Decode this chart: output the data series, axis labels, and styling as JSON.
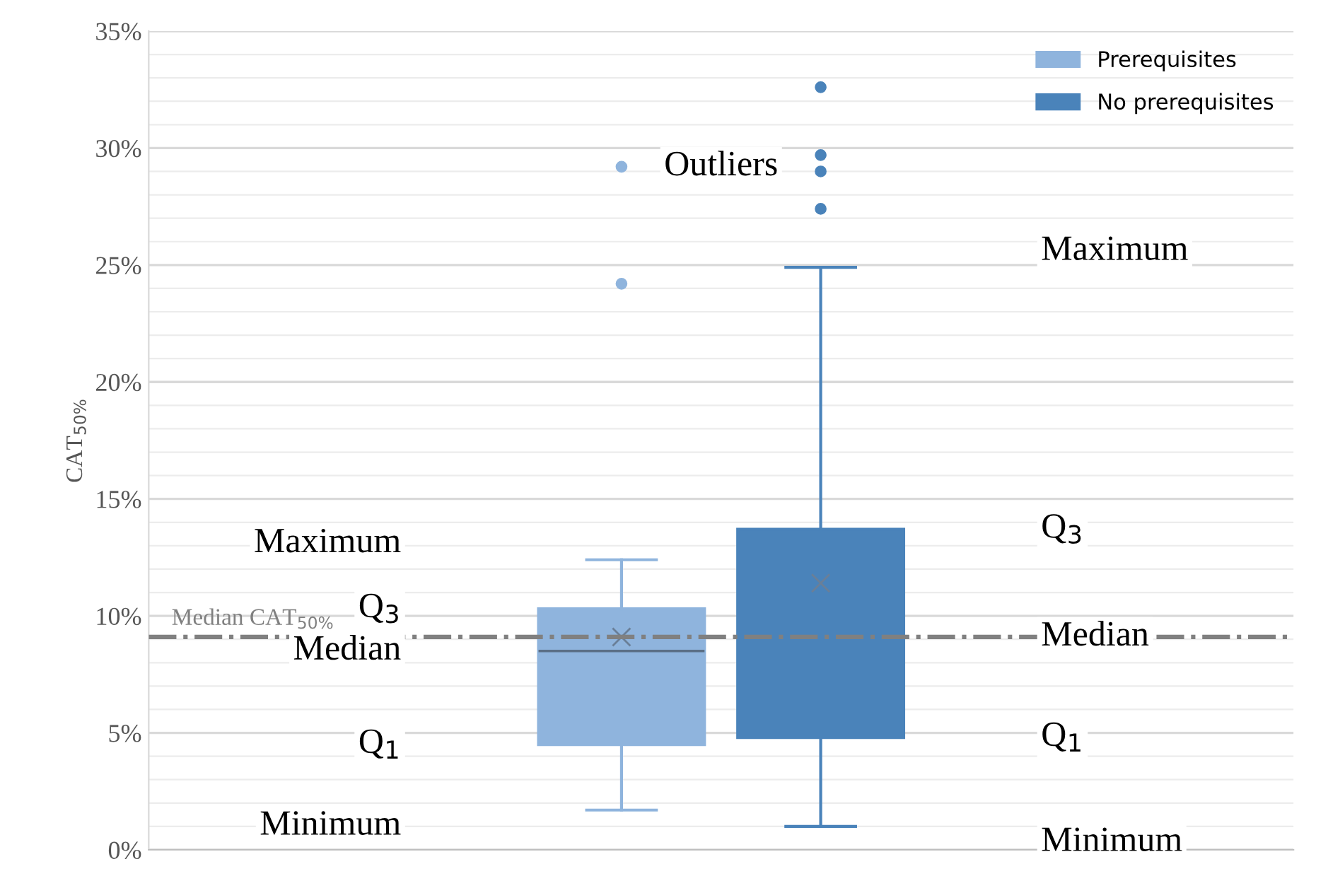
{
  "chart_data": {
    "type": "box",
    "ylabel": "CAT$_{50%}$",
    "categories": [
      null
    ],
    "series": [
      {
        "name": "Prerequisites",
        "color": "#8fb4dd",
        "boxes": [
          {
            "low": 1.7,
            "q1": 4.5,
            "median": 8.5,
            "q3": 10.3,
            "high": 12.4,
            "mean": 9.1,
            "outliers": [
              29.2,
              24.2
            ]
          }
        ]
      },
      {
        "name": "No prerequisites",
        "color": "#4a83ba",
        "boxes": [
          {
            "low": 1.0,
            "q1": 4.8,
            "median": 9.1,
            "q3": 13.7,
            "high": 24.9,
            "mean": 11.4,
            "outliers": [
              32.6,
              29.7,
              29.0,
              27.4
            ]
          }
        ]
      }
    ],
    "ylim": [
      0,
      35
    ],
    "yticks": [
      {
        "value": 0,
        "label": "0%"
      },
      {
        "value": 5,
        "label": "5%"
      },
      {
        "value": 10,
        "label": "10%"
      },
      {
        "value": 15,
        "label": "15%"
      },
      {
        "value": 20,
        "label": "20%"
      },
      {
        "value": 25,
        "label": "25%"
      },
      {
        "value": 30,
        "label": "30%"
      },
      {
        "value": 35,
        "label": "35%"
      }
    ],
    "ref_lines": [
      {
        "axis": "y",
        "value": 9.1,
        "label": "Median CAT$_{50%}$",
        "color": "#808080",
        "line_style": "dashdot"
      }
    ],
    "annotations": [
      "Maximum",
      "Q$_{3}$",
      "Median",
      "Q$_{1}$",
      "Minimum",
      "Outliers",
      "Maximum",
      "Q$_{3}$",
      "Median",
      "Q$_{1}$",
      "Minimum"
    ],
    "grid": "y",
    "legend": "top right",
    "tick_labels": "y"
  }
}
